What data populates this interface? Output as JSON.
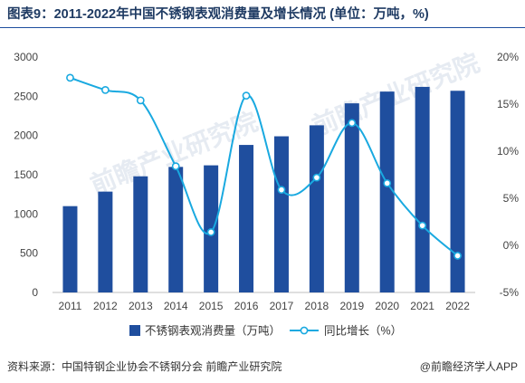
{
  "title": "图表9：2011-2022年中国不锈钢表观消费量及增长情况 (单位：万吨，%)",
  "source": "资料来源：中国特钢企业协会不锈钢分会 前瞻产业研究院",
  "credit": "@前瞻经济学人APP",
  "watermark": "前瞻产业研究院",
  "colors": {
    "bar": "#1f4e9e",
    "line": "#19a9e0",
    "marker_fill": "#ffffff",
    "title": "#1f3b63"
  },
  "chart_data": {
    "type": "bar",
    "categories": [
      "2011",
      "2012",
      "2013",
      "2014",
      "2015",
      "2016",
      "2017",
      "2018",
      "2019",
      "2020",
      "2021",
      "2022"
    ],
    "series": [
      {
        "name": "不锈钢表观消费量（万吨）",
        "type": "bar",
        "axis": "left",
        "values": [
          1100,
          1285,
          1480,
          1600,
          1620,
          1880,
          1990,
          2130,
          2410,
          2560,
          2620,
          2570
        ]
      },
      {
        "name": "同比增长（%）",
        "type": "line",
        "axis": "right",
        "values": [
          17.8,
          16.5,
          15.4,
          8.4,
          1.4,
          15.9,
          5.9,
          7.2,
          13.0,
          6.6,
          2.1,
          -1.1
        ]
      }
    ],
    "y_left": {
      "min": 0,
      "max": 3000,
      "ticks": [
        "0",
        "500",
        "1000",
        "1500",
        "2000",
        "2500",
        "3000"
      ]
    },
    "y_right": {
      "min": -5,
      "max": 20,
      "ticks": [
        "-5%",
        "0%",
        "5%",
        "10%",
        "15%",
        "20%"
      ]
    },
    "legend_position": "bottom"
  }
}
